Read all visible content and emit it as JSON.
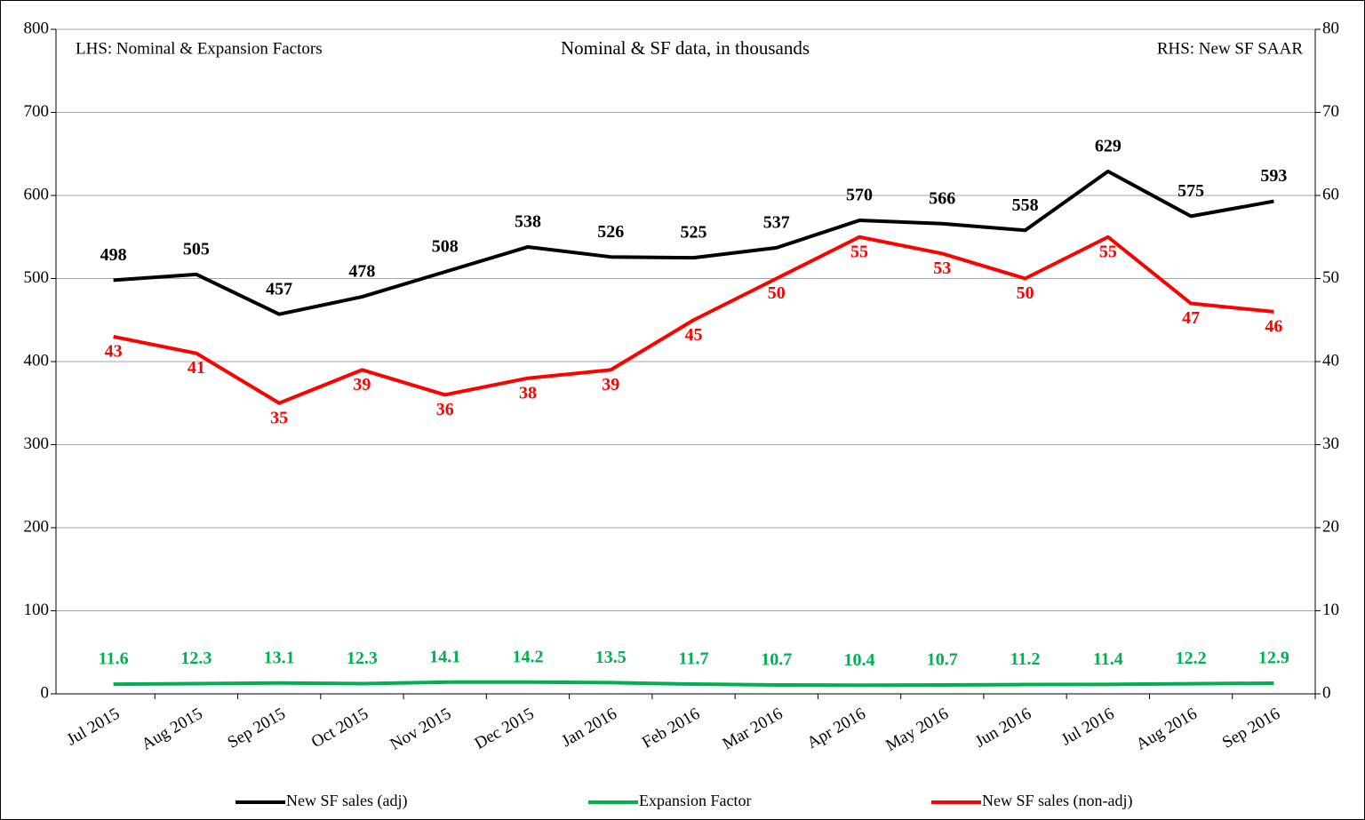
{
  "chart_data": {
    "type": "line",
    "annotations": [
      "LHS: Nominal & Expansion Factors",
      "Nominal & SF data, in thousands",
      "RHS: New SF SAAR"
    ],
    "categories": [
      "Jul 2015",
      "Aug 2015",
      "Sep 2015",
      "Oct 2015",
      "Nov 2015",
      "Dec 2015",
      "Jan 2016",
      "Feb 2016",
      "Mar 2016",
      "Apr 2016",
      "May 2016",
      "Jun 2016",
      "Jul 2016",
      "Aug 2016",
      "Sep 2016"
    ],
    "series": [
      {
        "name": "New SF sales (adj)",
        "color": "#000000",
        "values": [
          498,
          505,
          457,
          478,
          508,
          538,
          526,
          525,
          537,
          570,
          566,
          558,
          629,
          575,
          593
        ]
      },
      {
        "name": "Expansion Factor",
        "color": "#00b050",
        "values": [
          11.6,
          12.3,
          13.1,
          12.3,
          14.1,
          14.2,
          13.5,
          11.7,
          10.7,
          10.4,
          10.7,
          11.2,
          11.4,
          12.2,
          12.9
        ]
      },
      {
        "name": "New SF sales (non-adj)",
        "color": "#ff0000",
        "axis": "y2",
        "values": [
          43,
          41,
          35,
          39,
          36,
          38,
          39,
          45,
          50,
          55,
          53,
          50,
          55,
          47,
          46
        ]
      }
    ],
    "ylim": [
      0,
      800
    ],
    "yticks": [
      0,
      100,
      200,
      300,
      400,
      500,
      600,
      700,
      800
    ],
    "y2lim": [
      0,
      80
    ],
    "y2ticks": [
      0,
      10,
      20,
      30,
      40,
      50,
      60,
      70,
      80
    ],
    "grid": true
  }
}
